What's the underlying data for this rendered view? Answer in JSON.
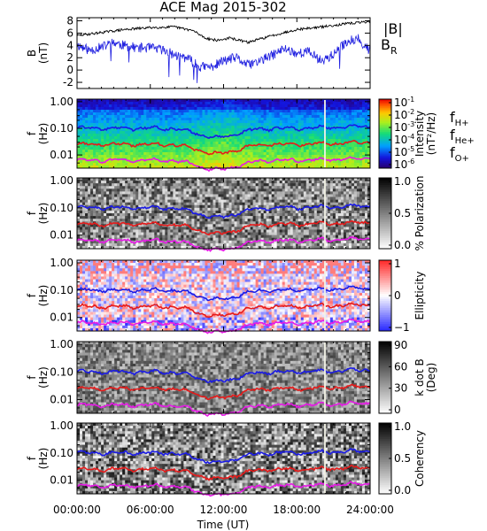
{
  "title": "ACE Mag 2015-302",
  "x_tick_labels": [
    "00:00:00",
    "06:00:00",
    "12:00:00",
    "18:00:00",
    "24:00:00"
  ],
  "x_label": "Time (UT)",
  "colors": {
    "B_total": "#000000",
    "B_R": "#1f1fe0",
    "f_Hplus": "#1a1ae6",
    "f_Heplus": "#e61a1a",
    "f_Oplus": "#e61ae6"
  },
  "chart_data": [
    {
      "type": "line",
      "panel": "magnetic-field",
      "ylabel_top": "B",
      "ylabel_unit": "(nT)",
      "xlim": [
        0,
        24
      ],
      "ylim": [
        -3,
        8.5
      ],
      "y_ticks": [
        "8",
        "6",
        "4",
        "2",
        "0",
        "-2"
      ],
      "legend": {
        "total": "|B|",
        "radial": "B",
        "radial_sub": "R"
      },
      "series": [
        {
          "name": "|B|",
          "x": [
            0,
            2,
            4,
            6,
            8,
            9.5,
            10.5,
            11.5,
            12.5,
            14,
            16,
            18,
            20,
            22,
            24
          ],
          "values": [
            5.6,
            6.1,
            6.6,
            6.9,
            7.0,
            6.4,
            5.2,
            4.8,
            5.2,
            4.5,
            5.6,
            6.6,
            7.0,
            7.5,
            7.9
          ]
        },
        {
          "name": "B_R",
          "x": [
            0,
            1,
            2,
            3,
            4,
            5,
            6,
            7,
            8,
            9,
            10,
            11,
            12,
            13,
            14,
            15,
            16,
            17,
            18,
            19,
            20,
            21,
            22,
            23,
            24
          ],
          "values": [
            4.1,
            3.2,
            3.7,
            4.5,
            3.9,
            3.6,
            3.6,
            3.3,
            2.4,
            2.0,
            0.5,
            0.5,
            1.5,
            2.0,
            0.8,
            1.5,
            2.4,
            3.5,
            2.7,
            3.0,
            1.5,
            2.5,
            4.5,
            5.2,
            3.0
          ]
        }
      ]
    },
    {
      "type": "heatmap",
      "panel": "power-spectrum",
      "ylabel_top": "f",
      "ylabel_unit": "(Hz)",
      "y_ticks": [
        "1.00",
        "0.10",
        "0.01"
      ],
      "colorbar_ticks": [
        "10",
        "10",
        "10",
        "10",
        "10",
        "10"
      ],
      "colorbar_exponents": [
        "-1",
        "-2",
        "-3",
        "-4",
        "-5",
        "-6"
      ],
      "colorbar_label": "Intensity",
      "colorbar_unit": "(nT²/Hz)",
      "legend": [
        {
          "base": "f",
          "sub": "H+"
        },
        {
          "base": "f",
          "sub": "He+"
        },
        {
          "base": "f",
          "sub": "O+"
        }
      ]
    },
    {
      "type": "heatmap",
      "panel": "polarization",
      "ylabel_top": "f",
      "ylabel_unit": "(Hz)",
      "y_ticks": [
        "1.00",
        "0.10",
        "0.01"
      ],
      "colorbar_ticks": [
        "1.0",
        "0.5",
        "0.0"
      ],
      "colorbar_label": "% Polarization"
    },
    {
      "type": "heatmap",
      "panel": "ellipticity",
      "ylabel_top": "f",
      "ylabel_unit": "(Hz)",
      "y_ticks": [
        "1.00",
        "0.10",
        "0.01"
      ],
      "colorbar_ticks": [
        "1",
        "0",
        "−1"
      ],
      "colorbar_label": "Ellipticity"
    },
    {
      "type": "heatmap",
      "panel": "k-dot-b",
      "ylabel_top": "f",
      "ylabel_unit": "(Hz)",
      "y_ticks": [
        "1.00",
        "0.10",
        "0.01"
      ],
      "colorbar_ticks": [
        "90",
        "60",
        "30",
        "0"
      ],
      "colorbar_label": "k dot B",
      "colorbar_unit": "(Deg)"
    },
    {
      "type": "heatmap",
      "panel": "coherency",
      "ylabel_top": "f",
      "ylabel_unit": "(Hz)",
      "y_ticks": [
        "1.00",
        "0.10",
        "0.01"
      ],
      "colorbar_ticks": [
        "1.0",
        "0.5",
        "0.0"
      ],
      "colorbar_label": "Coherency"
    }
  ]
}
